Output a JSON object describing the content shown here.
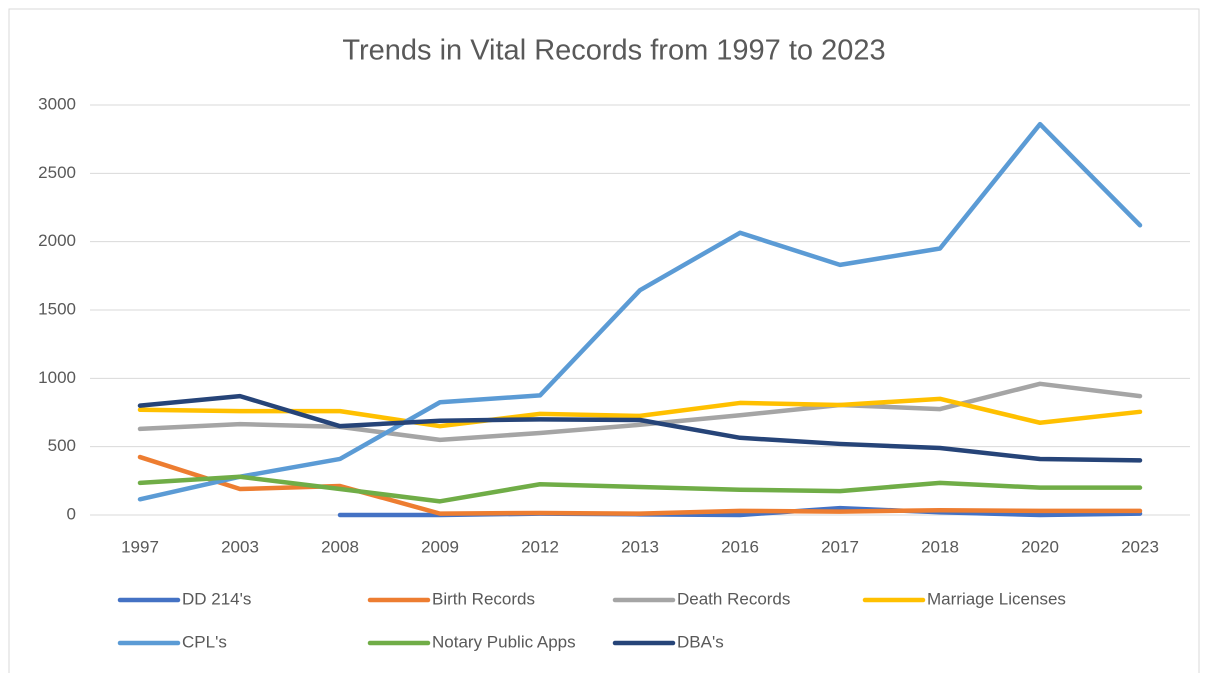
{
  "chart_data": {
    "type": "line",
    "title": "Trends in Vital Records from 1997 to 2023",
    "categories": [
      "1997",
      "2003",
      "2008",
      "2009",
      "2012",
      "2013",
      "2016",
      "2017",
      "2018",
      "2020",
      "2023"
    ],
    "ylim": [
      0,
      3000
    ],
    "yticks": [
      0,
      500,
      1000,
      1500,
      2000,
      2500,
      3000
    ],
    "grid": true,
    "series": [
      {
        "name": "DD 214's",
        "color": "#4472c4",
        "values": [
          null,
          null,
          0,
          0,
          10,
          5,
          0,
          50,
          20,
          0,
          10
        ]
      },
      {
        "name": "Birth Records",
        "color": "#ed7d31",
        "values": [
          424,
          190,
          212,
          10,
          15,
          10,
          30,
          25,
          35,
          30,
          30
        ]
      },
      {
        "name": "Death Records",
        "color": "#a5a5a5",
        "values": [
          630,
          665,
          645,
          550,
          600,
          660,
          730,
          805,
          775,
          960,
          870
        ]
      },
      {
        "name": "Marriage Licenses",
        "color": "#ffc000",
        "values": [
          770,
          760,
          760,
          650,
          740,
          725,
          820,
          805,
          850,
          675,
          755
        ]
      },
      {
        "name": "CPL's",
        "color": "#5b9bd5",
        "values": [
          115,
          280,
          410,
          825,
          875,
          1645,
          2065,
          1830,
          1950,
          2860,
          2120
        ]
      },
      {
        "name": "Notary Public Apps",
        "color": "#70ad47",
        "values": [
          235,
          280,
          190,
          100,
          225,
          205,
          185,
          175,
          235,
          200,
          200
        ]
      },
      {
        "name": "DBA's",
        "color": "#264478",
        "values": [
          800,
          870,
          650,
          690,
          700,
          695,
          565,
          520,
          490,
          410,
          400
        ]
      }
    ]
  }
}
